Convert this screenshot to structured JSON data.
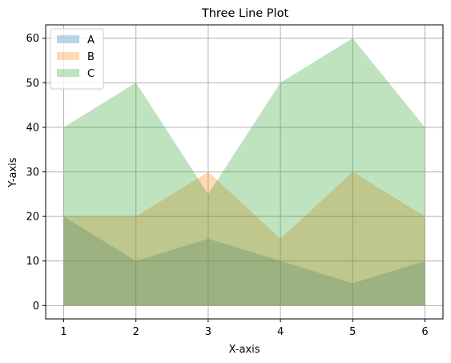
{
  "chart_data": {
    "type": "area",
    "title": "Three Line Plot",
    "xlabel": "X-axis",
    "ylabel": "Y-axis",
    "x": [
      1,
      2,
      3,
      4,
      5,
      6
    ],
    "xlim": [
      0.75,
      6.25
    ],
    "ylim": [
      -3,
      63
    ],
    "xticks": [
      1,
      2,
      3,
      4,
      5,
      6
    ],
    "yticks": [
      0,
      10,
      20,
      30,
      40,
      50,
      60
    ],
    "grid": true,
    "legend_position": "top-left",
    "area_opacity": 0.3,
    "series": [
      {
        "name": "A",
        "values": [
          20,
          10,
          15,
          10,
          5,
          10
        ],
        "color": "#1f77b4"
      },
      {
        "name": "B",
        "values": [
          20,
          20,
          30,
          15,
          30,
          20
        ],
        "color": "#ff7f0e"
      },
      {
        "name": "C",
        "values": [
          40,
          50,
          25,
          50,
          60,
          40
        ],
        "color": "#2ca02c"
      }
    ]
  }
}
